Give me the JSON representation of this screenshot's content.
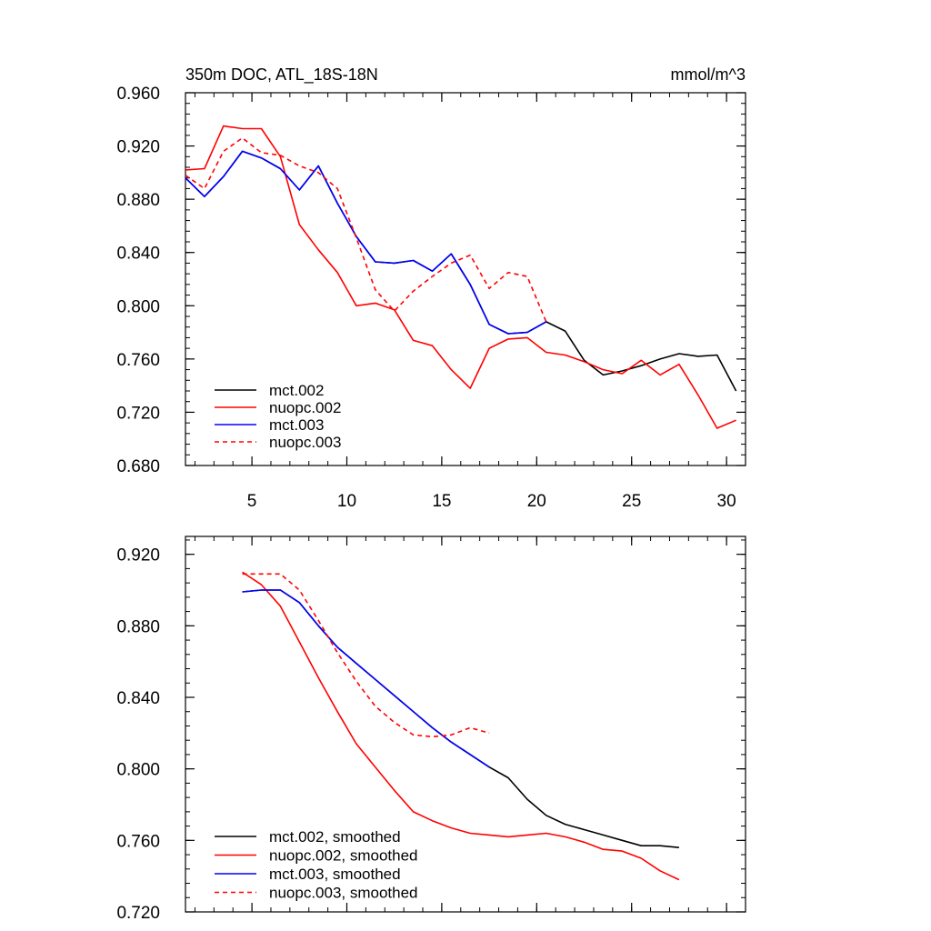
{
  "chart_data": [
    {
      "type": "line",
      "title": "350m DOC, ATL_18S-18N",
      "units": "mmol/m^3",
      "xlim": [
        1.5,
        31
      ],
      "ylim": [
        0.68,
        0.96
      ],
      "yticks": [
        "0.680",
        "0.720",
        "0.760",
        "0.800",
        "0.840",
        "0.880",
        "0.920",
        "0.960"
      ],
      "xticks": [
        "5",
        "10",
        "15",
        "20",
        "25",
        "30"
      ],
      "legend_position": "bottom-left",
      "series": [
        {
          "name": "mct.002",
          "color": "#000000",
          "dash": false,
          "x": [
            1.5,
            2.5,
            3.5,
            4.5,
            5.5,
            6.5,
            7.5,
            8.5,
            9.5,
            10.5,
            11.5,
            12.5,
            13.5,
            14.5,
            15.5,
            16.5,
            17.5,
            18.5,
            19.5,
            20.5,
            21.5,
            22.5,
            23.5,
            24.5,
            25.5,
            26.5,
            27.5,
            28.5,
            29.5,
            30.5
          ],
          "y": [
            0.896,
            0.882,
            0.897,
            0.916,
            0.911,
            0.903,
            0.887,
            0.905,
            0.877,
            0.852,
            0.833,
            0.832,
            0.834,
            0.826,
            0.839,
            0.816,
            0.786,
            0.779,
            0.78,
            0.788,
            0.781,
            0.759,
            0.748,
            0.751,
            0.755,
            0.76,
            0.764,
            0.762,
            0.763,
            0.736
          ]
        },
        {
          "name": "nuopc.002",
          "color": "#ff0000",
          "dash": false,
          "x": [
            1.5,
            2.5,
            3.5,
            4.5,
            5.5,
            6.5,
            7.5,
            8.5,
            9.5,
            10.5,
            11.5,
            12.5,
            13.5,
            14.5,
            15.5,
            16.5,
            17.5,
            18.5,
            19.5,
            20.5,
            21.5,
            22.5,
            23.5,
            24.5,
            25.5,
            26.5,
            27.5,
            28.5,
            29.5,
            30.5
          ],
          "y": [
            0.902,
            0.903,
            0.935,
            0.933,
            0.933,
            0.912,
            0.861,
            0.842,
            0.825,
            0.8,
            0.802,
            0.797,
            0.774,
            0.77,
            0.752,
            0.738,
            0.768,
            0.775,
            0.776,
            0.765,
            0.763,
            0.758,
            0.752,
            0.749,
            0.759,
            0.748,
            0.756,
            0.733,
            0.708,
            0.714
          ]
        },
        {
          "name": "mct.003",
          "color": "#0000ff",
          "dash": false,
          "x": [
            1.5,
            2.5,
            3.5,
            4.5,
            5.5,
            6.5,
            7.5,
            8.5,
            9.5,
            10.5,
            11.5,
            12.5,
            13.5,
            14.5,
            15.5,
            16.5,
            17.5,
            18.5,
            19.5,
            20.5
          ],
          "y": [
            0.896,
            0.882,
            0.897,
            0.916,
            0.911,
            0.903,
            0.887,
            0.905,
            0.877,
            0.852,
            0.833,
            0.832,
            0.834,
            0.826,
            0.839,
            0.816,
            0.786,
            0.779,
            0.78,
            0.788
          ]
        },
        {
          "name": "nuopc.003",
          "color": "#ff0000",
          "dash": true,
          "x": [
            1.5,
            2.5,
            3.5,
            4.5,
            5.5,
            6.5,
            7.5,
            8.5,
            9.5,
            10.5,
            11.5,
            12.5,
            13.5,
            14.5,
            15.5,
            16.5,
            17.5,
            18.5,
            19.5,
            20.5
          ],
          "y": [
            0.898,
            0.888,
            0.916,
            0.926,
            0.915,
            0.913,
            0.905,
            0.9,
            0.888,
            0.851,
            0.812,
            0.796,
            0.811,
            0.822,
            0.832,
            0.838,
            0.813,
            0.825,
            0.822,
            0.788
          ]
        }
      ]
    },
    {
      "type": "line",
      "xlim": [
        1.5,
        31
      ],
      "ylim": [
        0.72,
        0.93
      ],
      "yticks": [
        "0.720",
        "0.760",
        "0.800",
        "0.840",
        "0.880",
        "0.920"
      ],
      "legend_position": "bottom-left",
      "series": [
        {
          "name": "mct.002, smoothed",
          "color": "#000000",
          "dash": false,
          "x": [
            4.5,
            5.5,
            6.5,
            7.5,
            8.5,
            9.5,
            10.5,
            11.5,
            12.5,
            13.5,
            14.5,
            15.5,
            16.5,
            17.5,
            18.5,
            19.5,
            20.5,
            21.5,
            22.5,
            23.5,
            24.5,
            25.5,
            26.5,
            27.5
          ],
          "y": [
            0.899,
            0.9,
            0.9,
            0.893,
            0.88,
            0.868,
            0.859,
            0.85,
            0.841,
            0.832,
            0.823,
            0.815,
            0.808,
            0.801,
            0.795,
            0.783,
            0.774,
            0.769,
            0.766,
            0.763,
            0.76,
            0.757,
            0.757,
            0.756
          ]
        },
        {
          "name": "nuopc.002, smoothed",
          "color": "#ff0000",
          "dash": false,
          "x": [
            4.5,
            5.5,
            6.5,
            7.5,
            8.5,
            9.5,
            10.5,
            11.5,
            12.5,
            13.5,
            14.5,
            15.5,
            16.5,
            17.5,
            18.5,
            19.5,
            20.5,
            21.5,
            22.5,
            23.5,
            24.5,
            25.5,
            26.5,
            27.5
          ],
          "y": [
            0.91,
            0.903,
            0.891,
            0.871,
            0.851,
            0.832,
            0.814,
            0.801,
            0.788,
            0.776,
            0.771,
            0.767,
            0.764,
            0.763,
            0.762,
            0.763,
            0.764,
            0.762,
            0.759,
            0.755,
            0.754,
            0.75,
            0.743,
            0.738
          ]
        },
        {
          "name": "mct.003, smoothed",
          "color": "#0000ff",
          "dash": false,
          "x": [
            4.5,
            5.5,
            6.5,
            7.5,
            8.5,
            9.5,
            10.5,
            11.5,
            12.5,
            13.5,
            14.5,
            15.5,
            16.5,
            17.5
          ],
          "y": [
            0.899,
            0.9,
            0.9,
            0.893,
            0.88,
            0.868,
            0.859,
            0.85,
            0.841,
            0.832,
            0.823,
            0.815,
            0.808,
            0.801
          ]
        },
        {
          "name": "nuopc.003, smoothed",
          "color": "#ff0000",
          "dash": true,
          "x": [
            4.5,
            5.5,
            6.5,
            7.5,
            8.5,
            9.5,
            10.5,
            11.5,
            12.5,
            13.5,
            14.5,
            15.5,
            16.5,
            17.5
          ],
          "y": [
            0.909,
            0.909,
            0.909,
            0.9,
            0.883,
            0.865,
            0.849,
            0.835,
            0.826,
            0.819,
            0.818,
            0.819,
            0.823,
            0.82
          ]
        }
      ]
    }
  ]
}
